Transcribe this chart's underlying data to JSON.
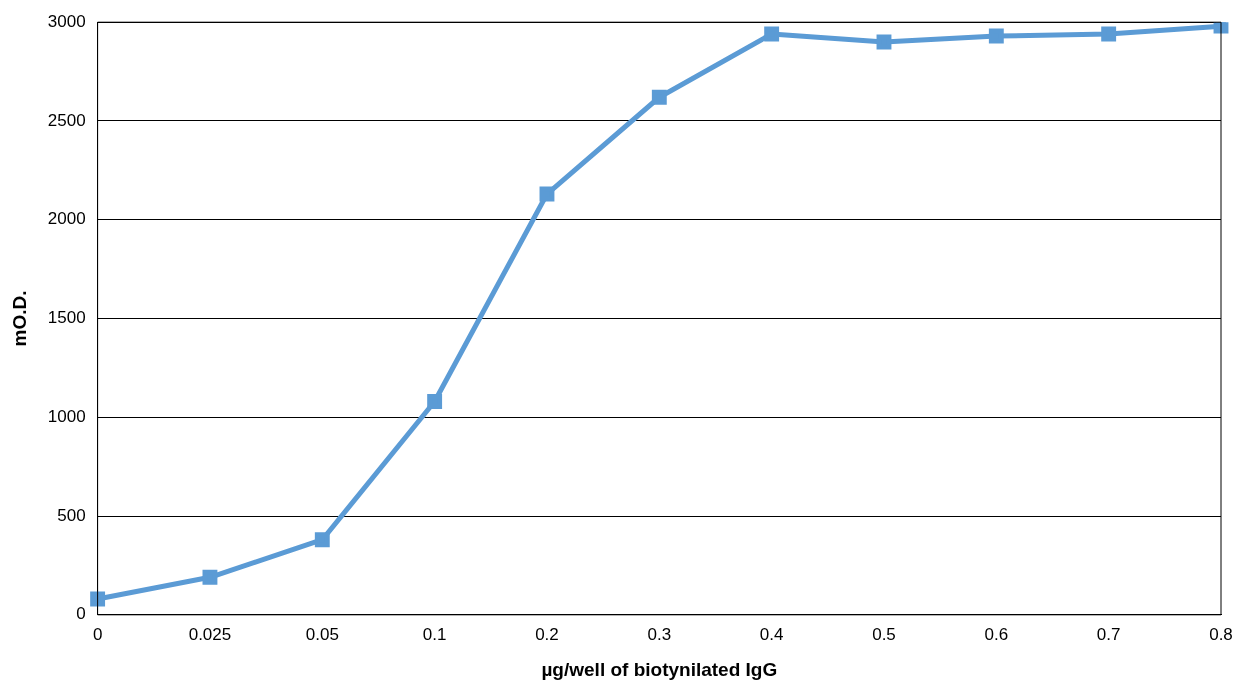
{
  "chart_data": {
    "type": "line",
    "xlabel": "µg/well of biotynilated IgG",
    "ylabel": "mO.D.",
    "categories": [
      "0",
      "0.025",
      "0.05",
      "0.1",
      "0.2",
      "0.3",
      "0.4",
      "0.5",
      "0.6",
      "0.7",
      "0.8"
    ],
    "series": [
      {
        "color": "#5b9bd5",
        "values": [
          80,
          190,
          380,
          1080,
          2130,
          2620,
          2940,
          2900,
          2930,
          2940,
          2980
        ]
      }
    ],
    "ylim": [
      0,
      3000
    ],
    "yticks": [
      0,
      500,
      1000,
      1500,
      2000,
      2500,
      3000
    ],
    "grid": "y",
    "legend": false,
    "marker": "square",
    "line_style": "solid"
  }
}
